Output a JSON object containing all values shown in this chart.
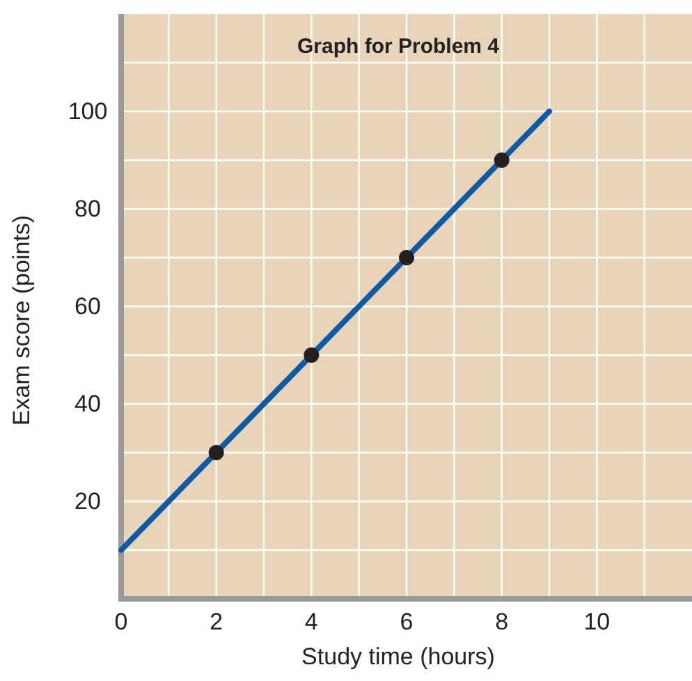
{
  "chart_data": {
    "type": "line",
    "title": "Graph for Problem 4",
    "xlabel": "Study time (hours)",
    "ylabel": "Exam score (points)",
    "xlim": [
      0,
      12
    ],
    "ylim": [
      0,
      120
    ],
    "xticks": [
      0,
      {
        "value": 1,
        "label": null
      },
      2,
      {
        "value": 3,
        "label": null
      },
      4,
      {
        "value": 5,
        "label": null
      },
      6,
      {
        "value": 7,
        "label": null
      },
      8,
      {
        "value": 9,
        "label": null
      },
      10,
      {
        "value": 11,
        "label": null
      }
    ],
    "yticks": [
      {
        "value": 10,
        "label": null
      },
      20,
      {
        "value": 30,
        "label": null
      },
      40,
      {
        "value": 50,
        "label": null
      },
      60,
      {
        "value": 70,
        "label": null
      },
      80,
      {
        "value": 90,
        "label": null
      },
      100,
      {
        "value": 110,
        "label": null
      }
    ],
    "grid": true,
    "series": [
      {
        "color": "#0f5aa6",
        "marker": "none",
        "x": [
          0,
          9
        ],
        "values": [
          10,
          100
        ]
      },
      {
        "type": "scatter",
        "color": "#231f20",
        "marker": "circle",
        "x": [
          2,
          4,
          6,
          8
        ],
        "values": [
          30,
          50,
          70,
          90
        ]
      }
    ]
  }
}
